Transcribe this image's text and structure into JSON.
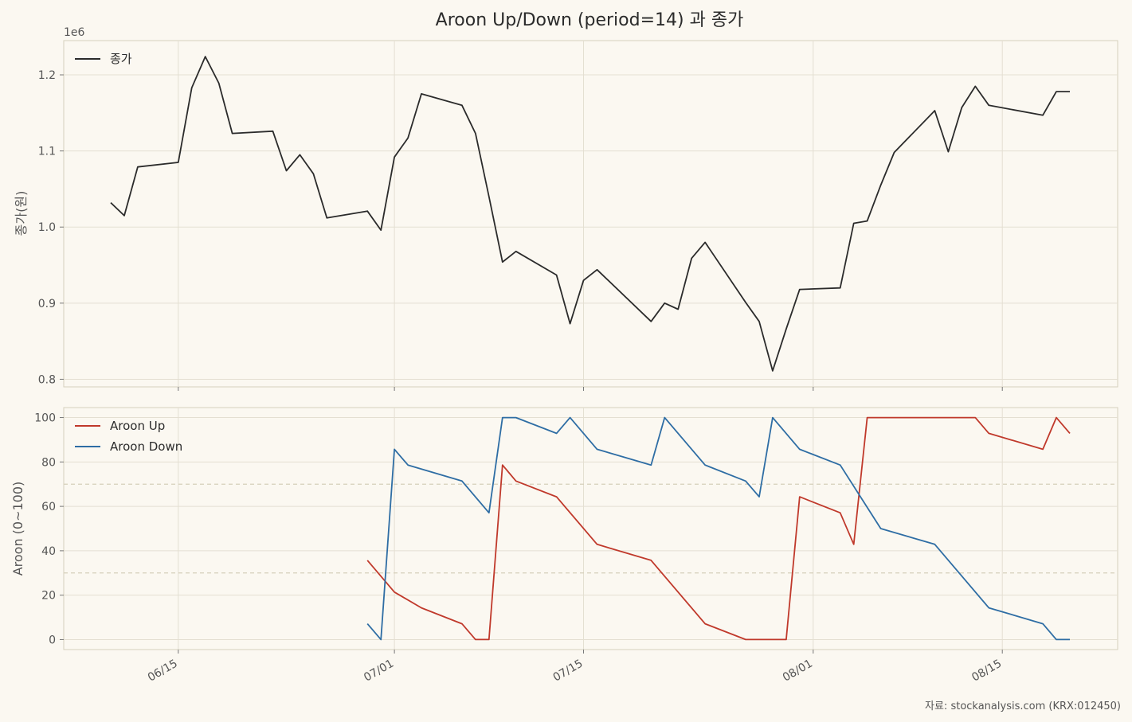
{
  "chart_data": [
    {
      "type": "line",
      "title": "Aroon Up/Down (period=14) 과 종가",
      "ylabel": "종가(원)",
      "y_offset_text": "1e6",
      "ylim": [
        790000,
        1245000
      ],
      "y_ticks": [
        800000,
        900000,
        1000000,
        1100000,
        1200000
      ],
      "y_tick_labels": [
        "0.8",
        "0.9",
        "1.0",
        "1.1",
        "1.2"
      ],
      "legend_position": "top-left",
      "grid": true,
      "series": [
        {
          "name": "종가",
          "color": "#2b2b2b",
          "x": [
            "2025-06-10",
            "2025-06-11",
            "2025-06-12",
            "2025-06-15",
            "2025-06-16",
            "2025-06-17",
            "2025-06-18",
            "2025-06-19",
            "2025-06-22",
            "2025-06-23",
            "2025-06-24",
            "2025-06-25",
            "2025-06-26",
            "2025-06-29",
            "2025-06-30",
            "2025-07-01",
            "2025-07-02",
            "2025-07-03",
            "2025-07-06",
            "2025-07-07",
            "2025-07-08",
            "2025-07-09",
            "2025-07-10",
            "2025-07-13",
            "2025-07-14",
            "2025-07-15",
            "2025-07-16",
            "2025-07-20",
            "2025-07-21",
            "2025-07-22",
            "2025-07-23",
            "2025-07-24",
            "2025-07-27",
            "2025-07-28",
            "2025-07-29",
            "2025-07-30",
            "2025-07-31",
            "2025-08-03",
            "2025-08-04",
            "2025-08-05",
            "2025-08-06",
            "2025-08-07",
            "2025-08-10",
            "2025-08-11",
            "2025-08-12",
            "2025-08-13",
            "2025-08-14",
            "2025-08-18",
            "2025-08-19",
            "2025-08-20"
          ],
          "values": [
            1032000,
            1015000,
            1079000,
            1085000,
            1183000,
            1224000,
            1189000,
            1123000,
            1126000,
            1074000,
            1095000,
            1070000,
            1012000,
            1021000,
            996000,
            1092000,
            1117000,
            1175000,
            1160000,
            1123000,
            1040000,
            954000,
            968000,
            937000,
            873000,
            930000,
            944000,
            876000,
            900000,
            892000,
            959000,
            980000,
            901000,
            876000,
            811000,
            866000,
            918000,
            920000,
            1005000,
            1008000,
            1055000,
            1098000,
            1153000,
            1099000,
            1157000,
            1185000,
            1160000,
            1147000,
            1178000,
            1178000
          ]
        }
      ]
    },
    {
      "type": "line",
      "ylabel": "Aroon (0~100)",
      "ylim": [
        -4.5,
        104.5
      ],
      "y_ticks": [
        0,
        20,
        40,
        60,
        80,
        100
      ],
      "y_tick_labels": [
        "0",
        "20",
        "40",
        "60",
        "80",
        "100"
      ],
      "reference_lines": [
        30,
        70
      ],
      "x_ticks": [
        "2025-06-15",
        "2025-07-01",
        "2025-07-15",
        "2025-08-01",
        "2025-08-15"
      ],
      "x_tick_labels": [
        "06/15",
        "07/01",
        "07/15",
        "08/01",
        "08/15"
      ],
      "legend_position": "top-left",
      "grid": true,
      "series": [
        {
          "name": "Aroon Up",
          "color": "#c0392b",
          "x": [
            "2025-06-29",
            "2025-07-01",
            "2025-07-03",
            "2025-07-06",
            "2025-07-07",
            "2025-07-08",
            "2025-07-09",
            "2025-07-10",
            "2025-07-13",
            "2025-07-16",
            "2025-07-20",
            "2025-07-24",
            "2025-07-27",
            "2025-07-30",
            "2025-07-31",
            "2025-08-03",
            "2025-08-04",
            "2025-08-05",
            "2025-08-13",
            "2025-08-14",
            "2025-08-18",
            "2025-08-19",
            "2025-08-20"
          ],
          "values": [
            35.7,
            21.4,
            14.3,
            7.1,
            0,
            0,
            78.6,
            71.4,
            64.3,
            42.9,
            35.7,
            7.1,
            0,
            0,
            64.3,
            57.1,
            42.9,
            100,
            100,
            92.9,
            85.7,
            100,
            92.9
          ]
        },
        {
          "name": "Aroon Down",
          "color": "#2e6da4",
          "x": [
            "2025-06-29",
            "2025-06-30",
            "2025-07-01",
            "2025-07-02",
            "2025-07-06",
            "2025-07-08",
            "2025-07-09",
            "2025-07-10",
            "2025-07-13",
            "2025-07-14",
            "2025-07-16",
            "2025-07-20",
            "2025-07-21",
            "2025-07-24",
            "2025-07-27",
            "2025-07-28",
            "2025-07-29",
            "2025-07-31",
            "2025-08-03",
            "2025-08-06",
            "2025-08-10",
            "2025-08-14",
            "2025-08-18",
            "2025-08-19",
            "2025-08-20"
          ],
          "values": [
            7.1,
            0,
            85.7,
            78.6,
            71.4,
            57.1,
            100,
            100,
            92.9,
            100,
            85.7,
            78.6,
            100,
            78.6,
            71.4,
            64.3,
            100,
            85.7,
            78.6,
            50,
            42.9,
            14.3,
            7.1,
            0,
            0
          ]
        }
      ]
    }
  ],
  "source_note": "자료: stockanalysis.com (KRX:012450)"
}
